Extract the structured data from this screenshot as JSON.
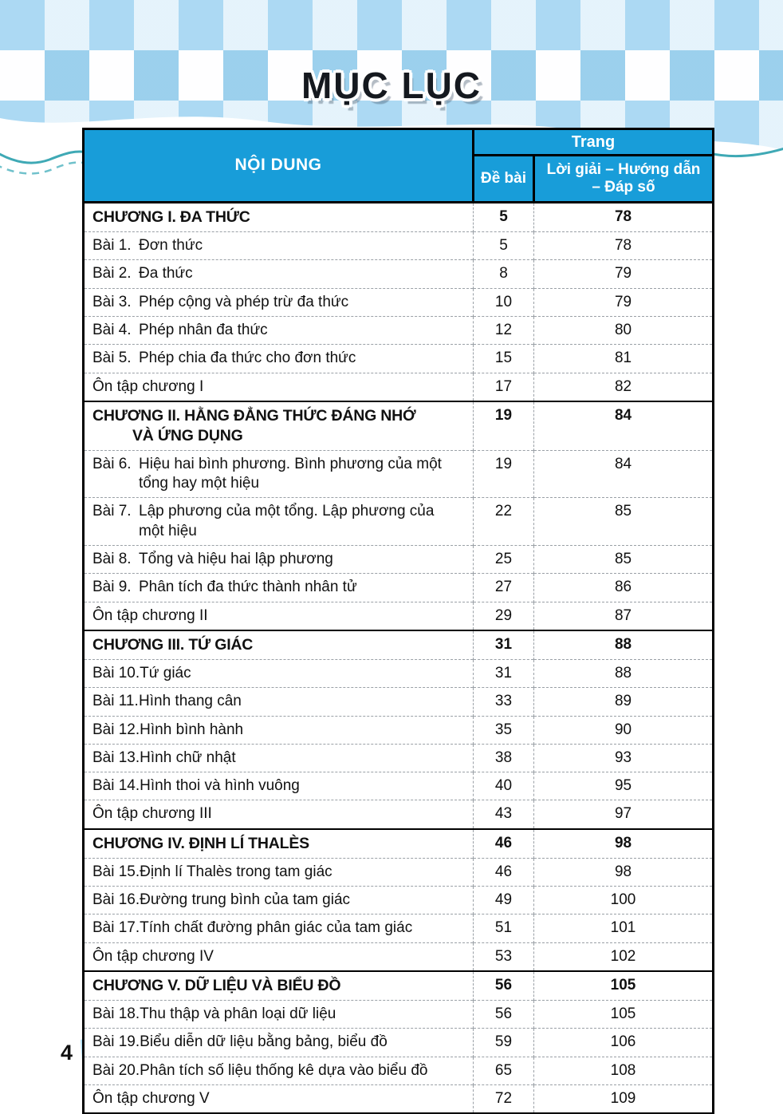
{
  "page": {
    "title": "MỤC LỤC",
    "number": "4"
  },
  "colors": {
    "header_bg": "#189dd9",
    "wave_teal": "#3fa9b5",
    "wave_teal_light": "#6fc1cb",
    "pattern_blue": "#b3dcf2",
    "icon_blue": "#8fd3ef",
    "title_color": "#15191f"
  },
  "table": {
    "header": {
      "content": "NỘI DUNG",
      "page_group": "Trang",
      "col_exercise": "Đề bài",
      "col_solution_line1": "Lời giải – Hướng dẫn",
      "col_solution_line2": "– Đáp số"
    },
    "rows": [
      {
        "type": "chapter",
        "text": "CHƯƠNG I. ĐA THỨC",
        "de_bai": "5",
        "loi_giai": "78"
      },
      {
        "type": "lesson",
        "label": "Bài 1.",
        "title": "Đơn thức",
        "de_bai": "5",
        "loi_giai": "78"
      },
      {
        "type": "lesson",
        "label": "Bài 2.",
        "title": "Đa thức",
        "de_bai": "8",
        "loi_giai": "79"
      },
      {
        "type": "lesson",
        "label": "Bài 3.",
        "title": "Phép cộng và phép trừ đa thức",
        "de_bai": "10",
        "loi_giai": "79"
      },
      {
        "type": "lesson",
        "label": "Bài 4.",
        "title": "Phép nhân đa thức",
        "de_bai": "12",
        "loi_giai": "80"
      },
      {
        "type": "lesson",
        "label": "Bài 5.",
        "title": "Phép chia đa thức cho đơn thức",
        "de_bai": "15",
        "loi_giai": "81"
      },
      {
        "type": "review",
        "text": "Ôn tập chương I",
        "de_bai": "17",
        "loi_giai": "82"
      },
      {
        "type": "chapter",
        "text": "CHƯƠNG II. HẰNG ĐẲNG THỨC ĐÁNG NHỚ",
        "line2": "VÀ ỨNG DỤNG",
        "de_bai": "19",
        "loi_giai": "84"
      },
      {
        "type": "lesson",
        "label": "Bài 6.",
        "title": "Hiệu hai bình phương. Bình phương của một",
        "title2": "tổng hay một hiệu",
        "de_bai": "19",
        "loi_giai": "84"
      },
      {
        "type": "lesson",
        "label": "Bài 7.",
        "title": "Lập phương của một tổng. Lập phương của",
        "title2": "một hiệu",
        "de_bai": "22",
        "loi_giai": "85"
      },
      {
        "type": "lesson",
        "label": "Bài 8.",
        "title": "Tổng và hiệu hai lập phương",
        "de_bai": "25",
        "loi_giai": "85"
      },
      {
        "type": "lesson",
        "label": "Bài 9.",
        "title": "Phân tích đa thức thành nhân tử",
        "de_bai": "27",
        "loi_giai": "86"
      },
      {
        "type": "review",
        "text": "Ôn tập chương II",
        "de_bai": "29",
        "loi_giai": "87"
      },
      {
        "type": "chapter",
        "text": "CHƯƠNG III. TỨ GIÁC",
        "de_bai": "31",
        "loi_giai": "88"
      },
      {
        "type": "lesson",
        "label": "Bài 10.",
        "title": "Tứ giác",
        "de_bai": "31",
        "loi_giai": "88"
      },
      {
        "type": "lesson",
        "label": "Bài 11.",
        "title": "Hình thang cân",
        "de_bai": "33",
        "loi_giai": "89"
      },
      {
        "type": "lesson",
        "label": "Bài 12.",
        "title": "Hình bình hành",
        "de_bai": "35",
        "loi_giai": "90"
      },
      {
        "type": "lesson",
        "label": "Bài 13.",
        "title": "Hình chữ nhật",
        "de_bai": "38",
        "loi_giai": "93"
      },
      {
        "type": "lesson",
        "label": "Bài 14.",
        "title": "Hình thoi và hình vuông",
        "de_bai": "40",
        "loi_giai": "95"
      },
      {
        "type": "review",
        "text": "Ôn tập chương III",
        "de_bai": "43",
        "loi_giai": "97"
      },
      {
        "type": "chapter",
        "text": "CHƯƠNG IV. ĐỊNH LÍ THALÈS",
        "de_bai": "46",
        "loi_giai": "98"
      },
      {
        "type": "lesson",
        "label": "Bài 15.",
        "title": "Định lí Thalès trong tam giác",
        "de_bai": "46",
        "loi_giai": "98"
      },
      {
        "type": "lesson",
        "label": "Bài 16.",
        "title": "Đường trung bình của tam giác",
        "de_bai": "49",
        "loi_giai": "100"
      },
      {
        "type": "lesson",
        "label": "Bài 17.",
        "title": "Tính chất đường phân giác của tam giác",
        "de_bai": "51",
        "loi_giai": "101"
      },
      {
        "type": "review",
        "text": "Ôn tập chương IV",
        "de_bai": "53",
        "loi_giai": "102"
      },
      {
        "type": "chapter",
        "text": "CHƯƠNG V. DỮ LIỆU VÀ BIỂU ĐỒ",
        "de_bai": "56",
        "loi_giai": "105"
      },
      {
        "type": "lesson",
        "label": "Bài 18.",
        "title": "Thu thập và phân loại dữ liệu",
        "de_bai": "56",
        "loi_giai": "105"
      },
      {
        "type": "lesson",
        "label": "Bài 19.",
        "title": "Biểu diễn dữ liệu bằng bảng, biểu đồ",
        "de_bai": "59",
        "loi_giai": "106"
      },
      {
        "type": "lesson",
        "label": "Bài 20.",
        "title": "Phân tích số liệu thống kê dựa vào biểu đồ",
        "de_bai": "65",
        "loi_giai": "108"
      },
      {
        "type": "review",
        "text": "Ôn tập chương V",
        "de_bai": "72",
        "loi_giai": "109"
      }
    ]
  }
}
